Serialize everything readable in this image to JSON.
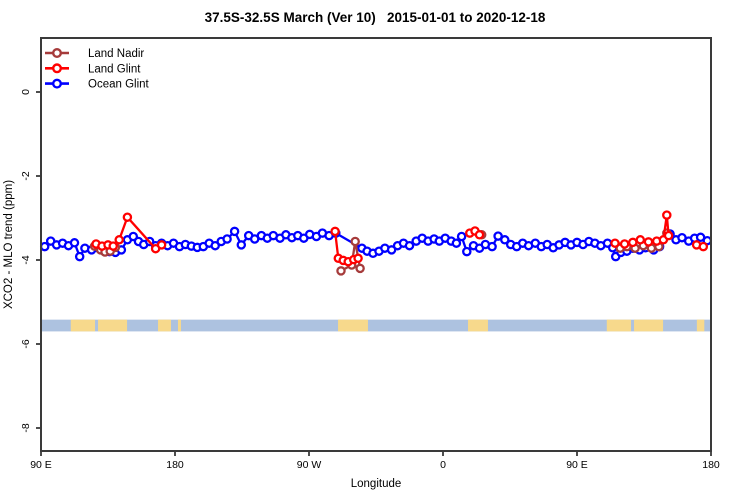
{
  "title": "37.5S-32.5S March (Ver 10)   2015-01-01 to 2020-12-18",
  "chart_data": {
    "type": "line",
    "title": "37.5S-32.5S March (Ver 10)   2015-01-01 to 2020-12-18",
    "xlabel": "Longitude",
    "ylabel": "XCO2 - MLO trend (ppm)",
    "x_axis": {
      "min": 90,
      "max": 540,
      "ticks": [
        {
          "pos": 90,
          "label": "90 E"
        },
        {
          "pos": 180,
          "label": "180"
        },
        {
          "pos": 270,
          "label": "90 W"
        },
        {
          "pos": 360,
          "label": "0"
        },
        {
          "pos": 450,
          "label": "90 E"
        },
        {
          "pos": 540,
          "label": "180"
        }
      ]
    },
    "y_axis": {
      "min": -8.55,
      "max": 1.29,
      "ticks": [
        {
          "pos": 0,
          "label": "0"
        },
        {
          "pos": -2,
          "label": "-2"
        },
        {
          "pos": -4,
          "label": "-4"
        },
        {
          "pos": -6,
          "label": "-6"
        },
        {
          "pos": -8,
          "label": "-8"
        }
      ]
    },
    "grid": false,
    "legend_position": "top-left",
    "legend": [
      {
        "label": "Land Nadir",
        "color": "#A63B3B"
      },
      {
        "label": "Land Glint",
        "color": "#FF0000"
      },
      {
        "label": "Ocean Glint",
        "color": "#0000FF"
      }
    ],
    "axis_color": "#3a3a3a",
    "map_band": {
      "ocean_color": "#ADC2E0",
      "land_color": "#F7D98C",
      "y_top": -5.42,
      "y_bottom": -5.7,
      "land_patches": [
        [
          110,
          126.3
        ],
        [
          128.3,
          147.8
        ],
        [
          168.6,
          177.3
        ],
        [
          182,
          184
        ],
        [
          289.5,
          309.6
        ],
        [
          376.8,
          390.2
        ],
        [
          470,
          486.3
        ],
        [
          488.3,
          507.8
        ],
        [
          530.5,
          535.5
        ]
      ]
    },
    "series": [
      {
        "name": "Ocean Glint",
        "color": "#0000FF",
        "segments": [
          [
            [
              92.5,
              -3.68
            ],
            [
              96.5,
              -3.55
            ],
            [
              100.5,
              -3.64
            ],
            [
              104.5,
              -3.6
            ],
            [
              108.5,
              -3.66
            ],
            [
              112.5,
              -3.59
            ],
            [
              116,
              -3.92
            ],
            [
              119.5,
              -3.72
            ],
            [
              124,
              -3.76
            ],
            [
              128,
              -3.71
            ],
            [
              132,
              -3.76
            ],
            [
              136,
              -3.8
            ],
            [
              140,
              -3.82
            ],
            [
              144,
              -3.76
            ],
            [
              148,
              -3.52
            ],
            [
              152,
              -3.44
            ],
            [
              155.5,
              -3.56
            ],
            [
              159,
              -3.63
            ],
            [
              163,
              -3.56
            ],
            [
              167,
              -3.66
            ],
            [
              171,
              -3.6
            ],
            [
              175,
              -3.66
            ],
            [
              179,
              -3.6
            ],
            [
              183,
              -3.68
            ],
            [
              187,
              -3.63
            ],
            [
              191,
              -3.67
            ],
            [
              195,
              -3.7
            ],
            [
              199,
              -3.68
            ],
            [
              203,
              -3.6
            ],
            [
              207,
              -3.66
            ],
            [
              211,
              -3.56
            ],
            [
              215,
              -3.5
            ],
            [
              220,
              -3.32
            ],
            [
              224.5,
              -3.64
            ],
            [
              229.5,
              -3.42
            ],
            [
              233.5,
              -3.5
            ],
            [
              238,
              -3.42
            ],
            [
              242,
              -3.48
            ],
            [
              246,
              -3.42
            ],
            [
              250.5,
              -3.48
            ],
            [
              254.5,
              -3.4
            ],
            [
              258.5,
              -3.47
            ],
            [
              262.5,
              -3.42
            ],
            [
              266.5,
              -3.48
            ],
            [
              270.5,
              -3.39
            ],
            [
              275,
              -3.44
            ],
            [
              279,
              -3.36
            ],
            [
              283.5,
              -3.42
            ],
            [
              288,
              -3.36
            ],
            [
              305.5,
              -3.72
            ],
            [
              309,
              -3.79
            ],
            [
              313,
              -3.84
            ],
            [
              317,
              -3.79
            ],
            [
              321,
              -3.72
            ],
            [
              325.5,
              -3.76
            ],
            [
              329.5,
              -3.66
            ],
            [
              333.5,
              -3.6
            ],
            [
              337.5,
              -3.66
            ],
            [
              342,
              -3.55
            ],
            [
              346,
              -3.48
            ],
            [
              350,
              -3.55
            ],
            [
              354,
              -3.5
            ],
            [
              357.5,
              -3.55
            ],
            [
              361.5,
              -3.48
            ],
            [
              365.5,
              -3.55
            ],
            [
              369,
              -3.6
            ],
            [
              372.5,
              -3.44
            ],
            [
              376,
              -3.8
            ],
            [
              380.5,
              -3.66
            ],
            [
              384.5,
              -3.72
            ],
            [
              388.5,
              -3.63
            ],
            [
              393,
              -3.68
            ],
            [
              397,
              -3.43
            ],
            [
              401.5,
              -3.52
            ],
            [
              405.5,
              -3.63
            ],
            [
              409.5,
              -3.68
            ],
            [
              413.5,
              -3.6
            ],
            [
              417.5,
              -3.66
            ],
            [
              422,
              -3.6
            ],
            [
              426,
              -3.68
            ],
            [
              430,
              -3.63
            ],
            [
              434,
              -3.71
            ],
            [
              438,
              -3.64
            ],
            [
              442,
              -3.58
            ],
            [
              446,
              -3.64
            ],
            [
              450,
              -3.58
            ],
            [
              454,
              -3.63
            ],
            [
              458,
              -3.56
            ],
            [
              462,
              -3.6
            ],
            [
              466,
              -3.66
            ],
            [
              470.5,
              -3.6
            ],
            [
              474,
              -3.71
            ],
            [
              476,
              -3.92
            ],
            [
              479.5,
              -3.82
            ],
            [
              483.5,
              -3.79
            ],
            [
              487.5,
              -3.72
            ],
            [
              492,
              -3.76
            ],
            [
              496,
              -3.71
            ],
            [
              501.5,
              -3.76
            ],
            [
              505.5,
              -3.68
            ],
            [
              512.5,
              -3.38
            ],
            [
              516.5,
              -3.52
            ],
            [
              520.5,
              -3.47
            ],
            [
              525,
              -3.55
            ],
            [
              529,
              -3.48
            ],
            [
              533,
              -3.46
            ],
            [
              537.5,
              -3.54
            ]
          ]
        ]
      },
      {
        "name": "Land Nadir",
        "color": "#A63B3B",
        "segments": [
          [
            [
              126,
              -3.67
            ],
            [
              130,
              -3.76
            ],
            [
              133,
              -3.81
            ],
            [
              136.5,
              -3.79
            ],
            [
              140,
              -3.7
            ]
          ],
          [
            [
              291.5,
              -4.26
            ],
            [
              298.7,
              -4.12
            ],
            [
              301,
              -3.56
            ],
            [
              304.3,
              -4.2
            ]
          ],
          [
            [
              386,
              -3.4
            ]
          ],
          [
            [
              479,
              -3.72
            ],
            [
              483.5,
              -3.68
            ],
            [
              489,
              -3.72
            ],
            [
              494.5,
              -3.66
            ],
            [
              500,
              -3.72
            ],
            [
              505,
              -3.68
            ],
            [
              510.3,
              -3.36
            ]
          ]
        ]
      },
      {
        "name": "Land Glint",
        "color": "#FF0000",
        "segments": [
          [
            [
              127,
              -3.62
            ],
            [
              131,
              -3.67
            ],
            [
              135,
              -3.64
            ],
            [
              138.5,
              -3.67
            ],
            [
              142.5,
              -3.52
            ],
            [
              148,
              -2.98
            ],
            [
              167,
              -3.73
            ],
            [
              171,
              -3.64
            ]
          ],
          [
            [
              287.5,
              -3.32
            ],
            [
              289.7,
              -3.96
            ],
            [
              293,
              -4.01
            ],
            [
              296.3,
              -4.04
            ],
            [
              300,
              -3.99
            ],
            [
              303,
              -3.96
            ]
          ],
          [
            [
              378,
              -3.36
            ],
            [
              381.5,
              -3.31
            ],
            [
              384.5,
              -3.4
            ]
          ],
          [
            [
              475.5,
              -3.6
            ],
            [
              482,
              -3.62
            ],
            [
              487.5,
              -3.58
            ],
            [
              492.5,
              -3.52
            ],
            [
              498,
              -3.57
            ],
            [
              503.5,
              -3.55
            ],
            [
              508,
              -3.52
            ],
            [
              510.3,
              -2.93
            ],
            [
              511.5,
              -3.42
            ]
          ],
          [
            [
              530.3,
              -3.64
            ],
            [
              534.8,
              -3.68
            ]
          ]
        ]
      }
    ]
  }
}
